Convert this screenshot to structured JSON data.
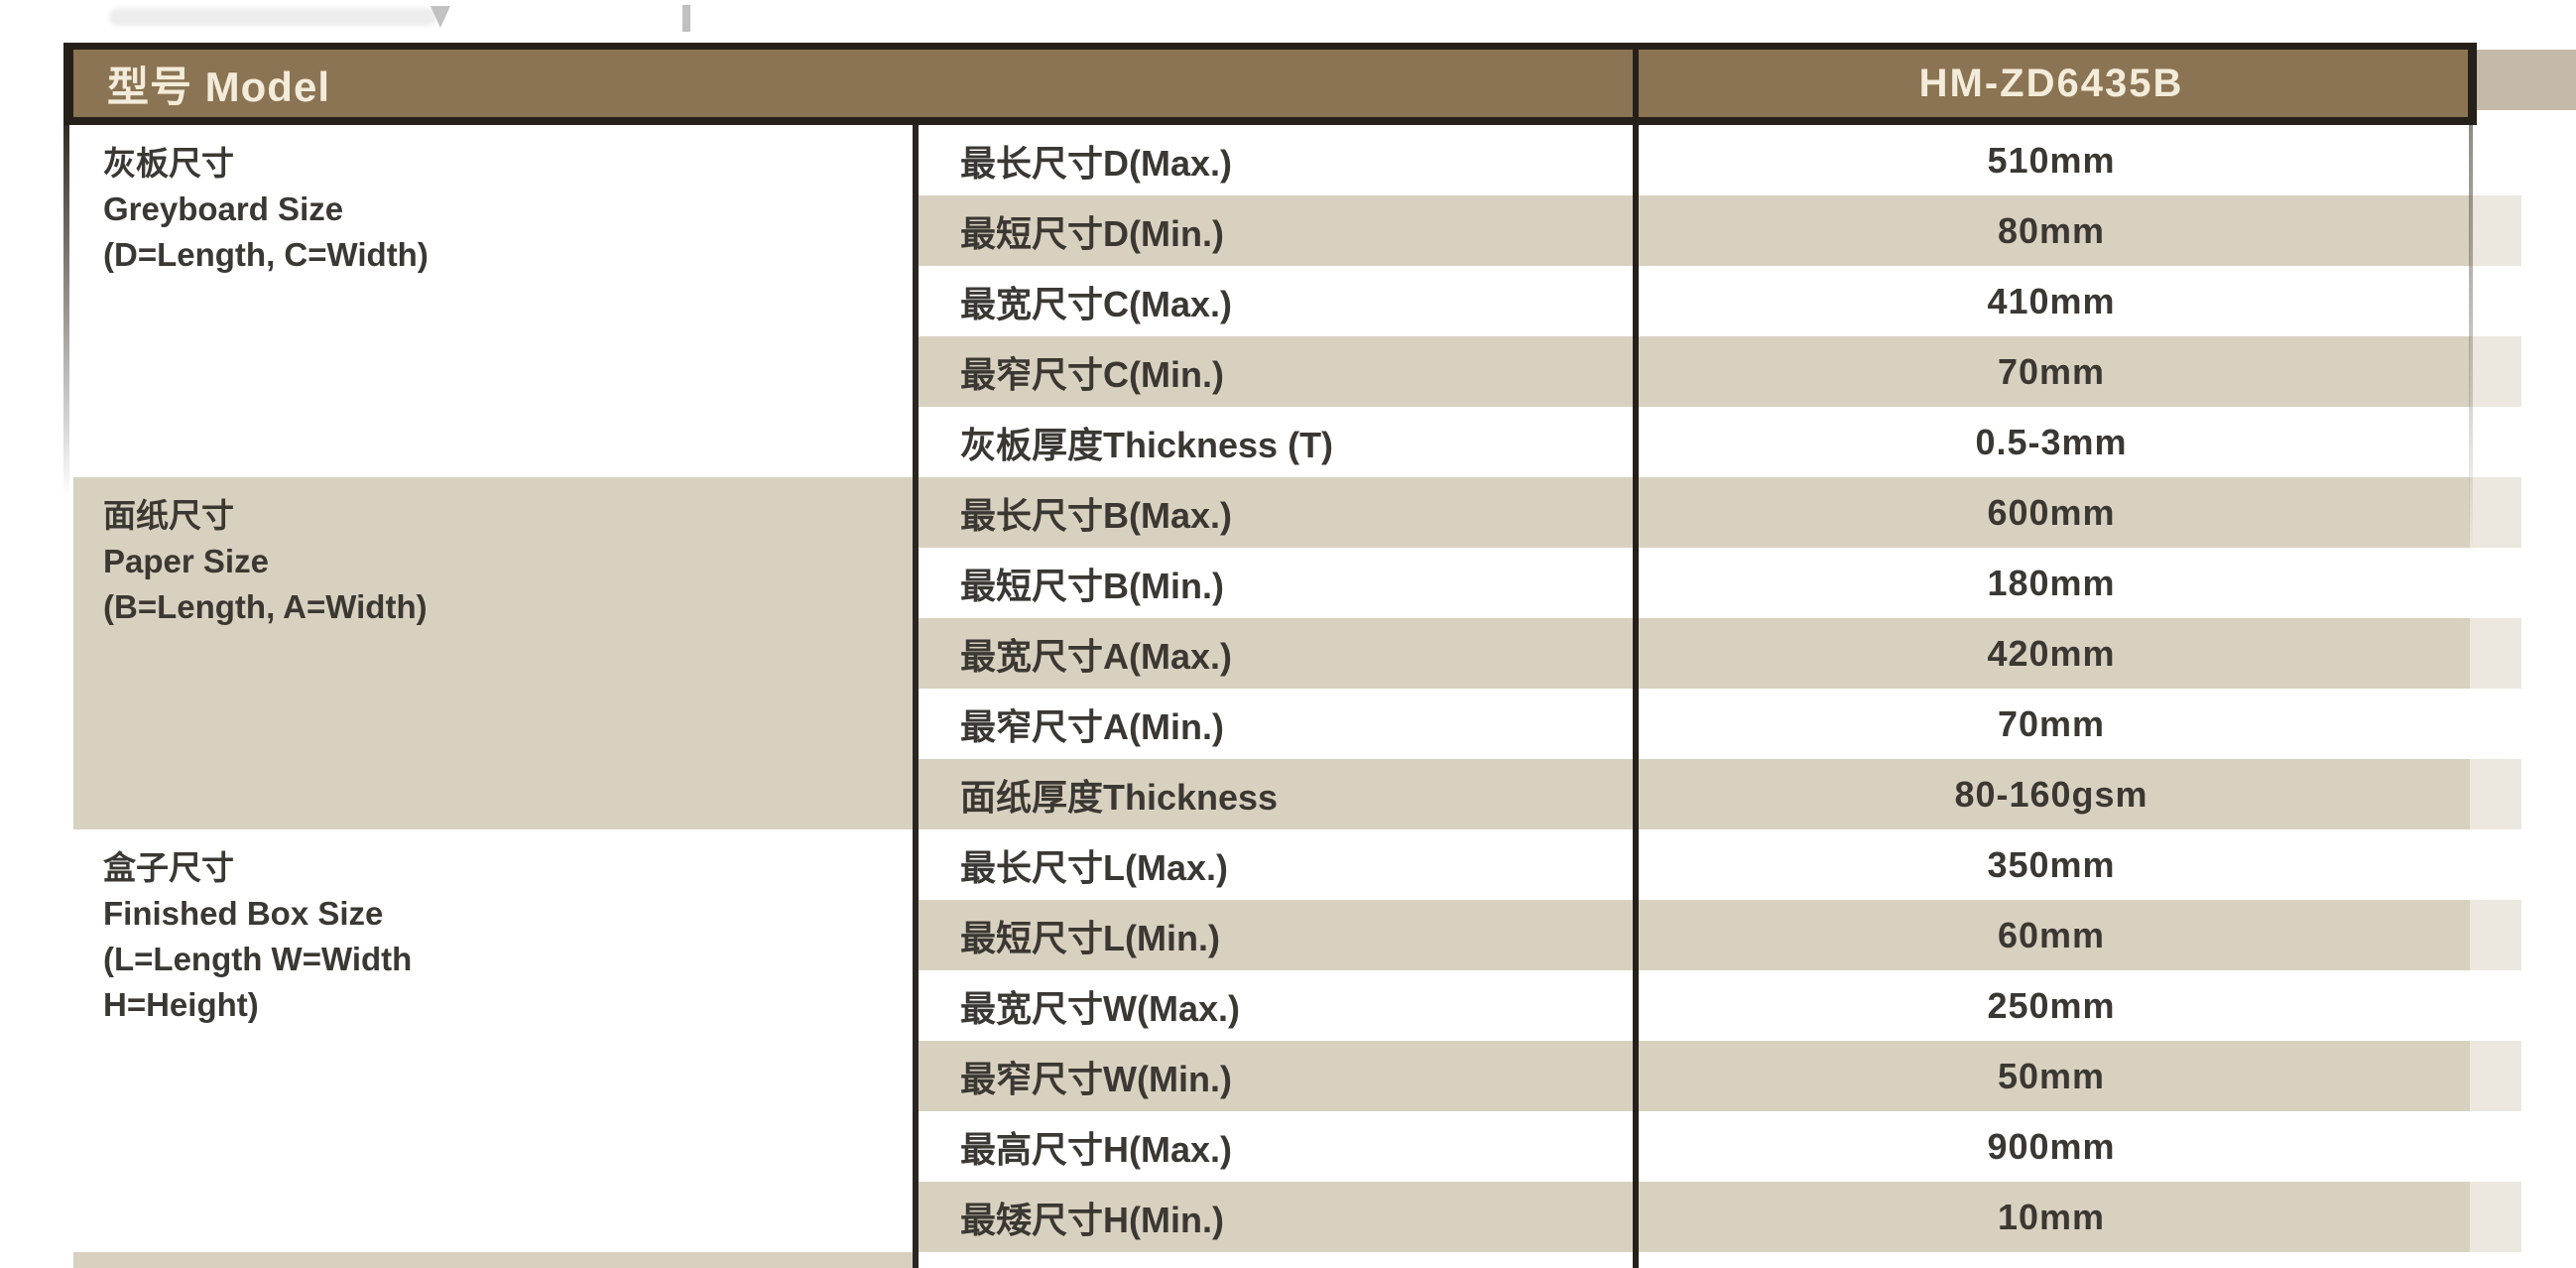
{
  "colors": {
    "header_bg": "#8b7453",
    "header_text": "#f3ecda",
    "stripe_beige": "#d9d1c0",
    "row_text": "#3b3833",
    "border_dark": "#26201a"
  },
  "table": {
    "header": {
      "model_label": "型号 Model",
      "model_value": "HM-ZD6435B"
    },
    "groups": [
      {
        "lines": [
          "灰板尺寸",
          "Greyboard Size",
          "(D=Length, C=Width)"
        ]
      },
      {
        "lines": [
          "面纸尺寸",
          "Paper Size",
          "(B=Length, A=Width)"
        ]
      },
      {
        "lines": [
          "盒子尺寸",
          "Finished Box Size",
          "(L=Length W=Width",
          "H=Height)"
        ]
      }
    ],
    "rows": [
      {
        "param": "最长尺寸D(Max.)",
        "value": "510mm"
      },
      {
        "param": "最短尺寸D(Min.)",
        "value": "80mm"
      },
      {
        "param": "最宽尺寸C(Max.)",
        "value": "410mm"
      },
      {
        "param": "最窄尺寸C(Min.)",
        "value": "70mm"
      },
      {
        "param": "灰板厚度Thickness (T)",
        "value": "0.5-3mm"
      },
      {
        "param": "最长尺寸B(Max.)",
        "value": "600mm"
      },
      {
        "param": "最短尺寸B(Min.)",
        "value": "180mm"
      },
      {
        "param": "最宽尺寸A(Max.)",
        "value": "420mm"
      },
      {
        "param": "最窄尺寸A(Min.)",
        "value": "70mm"
      },
      {
        "param": "面纸厚度Thickness",
        "value": "80-160gsm"
      },
      {
        "param": "最长尺寸L(Max.)",
        "value": "350mm"
      },
      {
        "param": "最短尺寸L(Min.)",
        "value": "60mm"
      },
      {
        "param": "最宽尺寸W(Max.)",
        "value": "250mm"
      },
      {
        "param": "最窄尺寸W(Min.)",
        "value": "50mm"
      },
      {
        "param": "最高尺寸H(Max.)",
        "value": "900mm"
      },
      {
        "param": "最矮尺寸H(Min.)",
        "value": "10mm"
      }
    ]
  }
}
